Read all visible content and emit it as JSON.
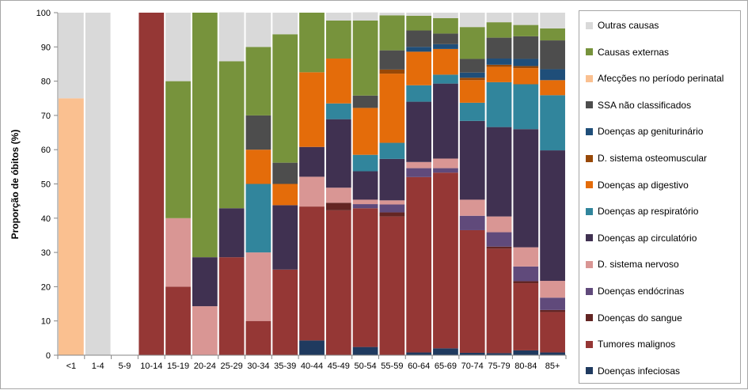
{
  "chart_data": {
    "type": "bar",
    "stacked": true,
    "ylabel": "Proporção de óbitos (%)",
    "ylim": [
      0,
      100
    ],
    "yticks": [
      0,
      10,
      20,
      30,
      40,
      50,
      60,
      70,
      80,
      90,
      100
    ],
    "grid": false,
    "legend_position": "right",
    "categories": [
      "<1",
      "1-4",
      "5-9",
      "10-14",
      "15-19",
      "20-24",
      "25-29",
      "30-34",
      "35-39",
      "40-44",
      "45-49",
      "50-54",
      "55-59",
      "60-64",
      "65-69",
      "70-74",
      "75-79",
      "80-84",
      "85+"
    ],
    "series": [
      {
        "name": "Doenças infeciosas",
        "color": "#1f3a5f",
        "values": [
          0,
          0,
          0,
          0,
          0,
          0,
          0,
          0,
          0,
          4.3,
          0,
          2.4,
          0,
          0.8,
          2.0,
          0.7,
          0.6,
          1.4,
          0.8
        ]
      },
      {
        "name": "Tumores malignos",
        "color": "#953735",
        "values": [
          0,
          0,
          0,
          100,
          20,
          0,
          28.6,
          10,
          25,
          39.1,
          42.3,
          40.5,
          40.5,
          51.2,
          51.3,
          35.8,
          30.5,
          19.6,
          11.8
        ]
      },
      {
        "name": "Doenças do sangue",
        "color": "#632523",
        "values": [
          0,
          0,
          0,
          0,
          0,
          0,
          0,
          0,
          0,
          0,
          2.2,
          0,
          1.2,
          0,
          0,
          0,
          0.6,
          0.6,
          0.6
        ]
      },
      {
        "name": "Doenças endócrinas",
        "color": "#604a7b",
        "values": [
          0,
          0,
          0,
          0,
          0,
          0,
          0,
          0,
          0,
          0,
          0,
          1.2,
          2.3,
          2.6,
          1.3,
          4.2,
          4.2,
          4.3,
          3.6
        ]
      },
      {
        "name": "D. sistema nervoso",
        "color": "#d99694",
        "values": [
          0,
          0,
          0,
          0,
          20,
          14.3,
          0,
          20,
          0,
          8.7,
          4.4,
          1.3,
          1.2,
          1.8,
          2.8,
          4.7,
          4.6,
          5.6,
          4.9
        ]
      },
      {
        "name": "Doenças ap circulatório",
        "color": "#403151",
        "values": [
          0,
          0,
          0,
          0,
          0,
          14.3,
          14.3,
          0,
          18.8,
          8.7,
          20.0,
          8.3,
          12.1,
          17.6,
          21.9,
          23.0,
          26.1,
          34.5,
          38.1
        ]
      },
      {
        "name": "Doenças ap respiratório",
        "color": "#31859c",
        "values": [
          0,
          0,
          0,
          0,
          0,
          0,
          0,
          20,
          0,
          0,
          4.6,
          4.8,
          4.7,
          4.8,
          2.6,
          5.3,
          13.1,
          13.1,
          16.1
        ]
      },
      {
        "name": "Doenças ap digestivo",
        "color": "#e46c0a",
        "values": [
          0,
          0,
          0,
          0,
          0,
          0,
          0,
          10,
          6.2,
          21.8,
          13.1,
          13.7,
          20.2,
          9.8,
          7.5,
          6.6,
          4.5,
          4.7,
          4.4
        ]
      },
      {
        "name": "D. sistema osteomuscular",
        "color": "#984807",
        "values": [
          0,
          0,
          0,
          0,
          0,
          0,
          0,
          0,
          0,
          0,
          0,
          0,
          1.2,
          0,
          0,
          0.7,
          0.6,
          0.6,
          0
        ]
      },
      {
        "name": "Doenças ap geniturinário",
        "color": "#1f4e79",
        "values": [
          0,
          0,
          0,
          0,
          0,
          0,
          0,
          0,
          0,
          0,
          0,
          0,
          0,
          1.4,
          1.4,
          1.5,
          1.8,
          2.1,
          3.2
        ]
      },
      {
        "name": "SSA não classificados",
        "color": "#4d4d4d",
        "values": [
          0,
          0,
          0,
          0,
          0,
          0,
          0,
          10,
          6.2,
          0,
          0,
          3.6,
          5.6,
          4.8,
          3.1,
          4.0,
          6.1,
          6.6,
          8.4
        ]
      },
      {
        "name": "Afecções no período perinatal",
        "color": "#fac090",
        "values": [
          75,
          0,
          0,
          0,
          0,
          0,
          0,
          0,
          0,
          0,
          0,
          0,
          0,
          0,
          0,
          0,
          0,
          0,
          0
        ]
      },
      {
        "name": "Causas externas",
        "color": "#77933c",
        "values": [
          0,
          0,
          0,
          0,
          40,
          71.4,
          42.9,
          20,
          37.5,
          17.4,
          11.1,
          21.9,
          10.2,
          4.3,
          4.5,
          9.3,
          4.5,
          3.3,
          3.5
        ]
      },
      {
        "name": "Outras causas",
        "color": "#d9d9d9",
        "values": [
          25,
          100,
          0,
          0,
          20,
          0,
          14.3,
          10,
          6.3,
          0,
          2.3,
          2.4,
          0.8,
          0.9,
          1.6,
          4.2,
          2.8,
          3.6,
          4.6
        ]
      }
    ]
  }
}
